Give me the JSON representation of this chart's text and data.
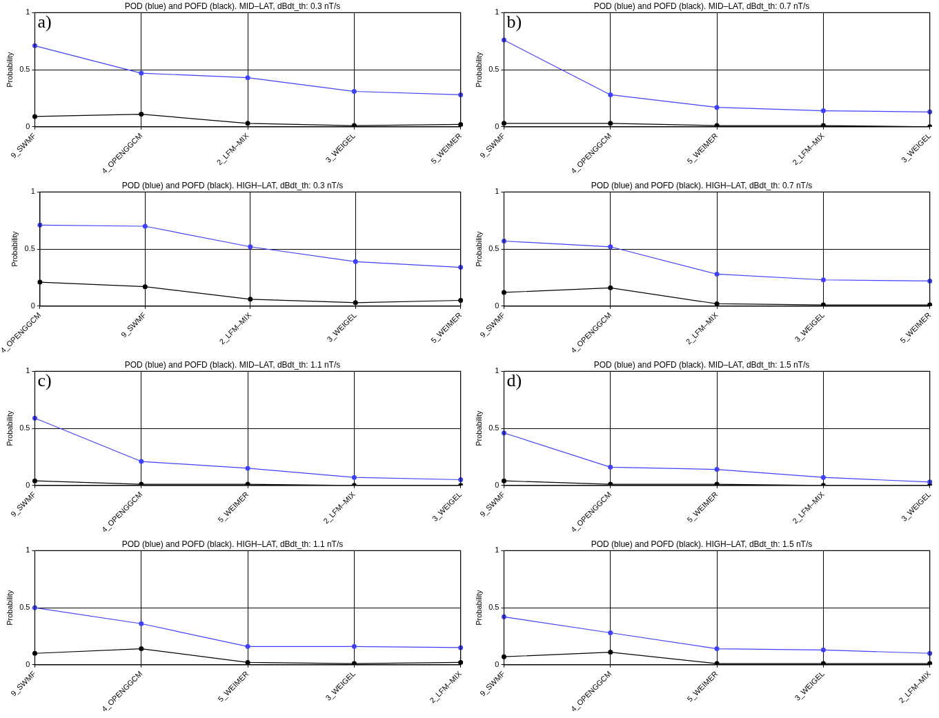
{
  "chart_data": [
    {
      "type": "line",
      "title": "POD (blue) and POFD (black). MID–LAT, dBdt_th: 0.3 nT/s",
      "ylabel": "Probability",
      "categories": [
        "9_SWMF",
        "4_OPENGGCM",
        "2_LFM–MIX",
        "3_WEIGEL",
        "5_WEIMER"
      ],
      "series": [
        {
          "color": "#4040ff",
          "values": [
            0.71,
            0.47,
            0.43,
            0.31,
            0.28
          ]
        },
        {
          "color": "#000000",
          "values": [
            0.09,
            0.11,
            0.03,
            0.01,
            0.02
          ]
        }
      ],
      "ylim": [
        0,
        1
      ],
      "yticks": [
        0,
        0.5,
        1
      ],
      "grid": true,
      "legend": false,
      "marker": "circle",
      "line_style": "solid",
      "annotations": [
        "a)"
      ]
    },
    {
      "type": "line",
      "title": "POD (blue) and POFD (black). MID–LAT, dBdt_th: 0.7 nT/s",
      "ylabel": "Probability",
      "categories": [
        "9_SWMF",
        "4_OPENGGCM",
        "5_WEIMER",
        "2_LFM–MIX",
        "3_WEIGEL"
      ],
      "series": [
        {
          "color": "#4040ff",
          "values": [
            0.76,
            0.28,
            0.17,
            0.14,
            0.13
          ]
        },
        {
          "color": "#000000",
          "values": [
            0.03,
            0.03,
            0.01,
            0.01,
            0.0
          ]
        }
      ],
      "ylim": [
        0,
        1
      ],
      "yticks": [
        0,
        0.5,
        1
      ],
      "grid": true,
      "legend": false,
      "marker": "circle",
      "line_style": "solid",
      "annotations": [
        "b)"
      ]
    },
    {
      "type": "line",
      "title": "POD (blue) and POFD (black). HIGH–LAT, dBdt_th: 0.3 nT/s",
      "ylabel": "Probability",
      "categories": [
        "4_OPENGGCM",
        "9_SWMF",
        "2_LFM–MIX",
        "3_WEIGEL",
        "5_WEIMER"
      ],
      "series": [
        {
          "color": "#4040ff",
          "values": [
            0.71,
            0.7,
            0.52,
            0.39,
            0.34
          ]
        },
        {
          "color": "#000000",
          "values": [
            0.21,
            0.17,
            0.06,
            0.03,
            0.05
          ]
        }
      ],
      "ylim": [
        0,
        1
      ],
      "yticks": [
        0,
        0.5,
        1
      ],
      "grid": true,
      "legend": false,
      "marker": "circle",
      "line_style": "solid"
    },
    {
      "type": "line",
      "title": "POD (blue) and POFD (black). HIGH–LAT, dBdt_th: 0.7 nT/s",
      "ylabel": "Probability",
      "categories": [
        "9_SWMF",
        "4_OPENGGCM",
        "2_LFM–MIX",
        "3_WEIGEL",
        "5_WEIMER"
      ],
      "series": [
        {
          "color": "#4040ff",
          "values": [
            0.57,
            0.52,
            0.28,
            0.23,
            0.22
          ]
        },
        {
          "color": "#000000",
          "values": [
            0.12,
            0.16,
            0.02,
            0.01,
            0.01
          ]
        }
      ],
      "ylim": [
        0,
        1
      ],
      "yticks": [
        0,
        0.5,
        1
      ],
      "grid": true,
      "legend": false,
      "marker": "circle",
      "line_style": "solid"
    },
    {
      "type": "line",
      "title": "POD (blue) and POFD (black). MID–LAT, dBdt_th: 1.1 nT/s",
      "ylabel": "Probability",
      "categories": [
        "9_SWMF",
        "4_OPENGGCM",
        "5_WEIMER",
        "2_LFM–MIX",
        "3_WEIGEL"
      ],
      "series": [
        {
          "color": "#4040ff",
          "values": [
            0.59,
            0.21,
            0.15,
            0.07,
            0.05
          ]
        },
        {
          "color": "#000000",
          "values": [
            0.04,
            0.01,
            0.01,
            0.0,
            0.0
          ]
        }
      ],
      "ylim": [
        0,
        1
      ],
      "yticks": [
        0,
        0.5,
        1
      ],
      "grid": true,
      "legend": false,
      "marker": "circle",
      "line_style": "solid",
      "annotations": [
        "c)"
      ]
    },
    {
      "type": "line",
      "title": "POD (blue) and POFD (black). MID–LAT, dBdt_th: 1.5 nT/s",
      "ylabel": "Probability",
      "categories": [
        "9_SWMF",
        "4_OPENGGCM",
        "5_WEIMER",
        "2_LFM–MIX",
        "3_WEIGEL"
      ],
      "series": [
        {
          "color": "#4040ff",
          "values": [
            0.46,
            0.16,
            0.14,
            0.07,
            0.03
          ]
        },
        {
          "color": "#000000",
          "values": [
            0.04,
            0.01,
            0.01,
            0.0,
            0.0
          ]
        }
      ],
      "ylim": [
        0,
        1
      ],
      "yticks": [
        0,
        0.5,
        1
      ],
      "grid": true,
      "legend": false,
      "marker": "circle",
      "line_style": "solid",
      "annotations": [
        "d)"
      ]
    },
    {
      "type": "line",
      "title": "POD (blue) and POFD (black). HIGH–LAT, dBdt_th: 1.1 nT/s",
      "ylabel": "Probability",
      "categories": [
        "9_SWMF",
        "4_OPENGGCM",
        "5_WEIMER",
        "3_WEIGEL",
        "2_LFM–MIX"
      ],
      "series": [
        {
          "color": "#4040ff",
          "values": [
            0.5,
            0.36,
            0.16,
            0.16,
            0.15
          ]
        },
        {
          "color": "#000000",
          "values": [
            0.1,
            0.14,
            0.02,
            0.01,
            0.02
          ]
        }
      ],
      "ylim": [
        0,
        1
      ],
      "yticks": [
        0,
        0.5,
        1
      ],
      "grid": true,
      "legend": false,
      "marker": "circle",
      "line_style": "solid"
    },
    {
      "type": "line",
      "title": "POD (blue) and POFD (black). HIGH–LAT, dBdt_th: 1.5 nT/s",
      "ylabel": "Probability",
      "categories": [
        "9_SWMF",
        "4_OPENGGCM",
        "5_WEIMER",
        "3_WEIGEL",
        "2_LFM–MIX"
      ],
      "series": [
        {
          "color": "#4040ff",
          "values": [
            0.42,
            0.28,
            0.14,
            0.13,
            0.1
          ]
        },
        {
          "color": "#000000",
          "values": [
            0.07,
            0.11,
            0.01,
            0.01,
            0.01
          ]
        }
      ],
      "ylim": [
        0,
        1
      ],
      "yticks": [
        0,
        0.5,
        1
      ],
      "grid": true,
      "legend": false,
      "marker": "circle",
      "line_style": "solid"
    }
  ]
}
